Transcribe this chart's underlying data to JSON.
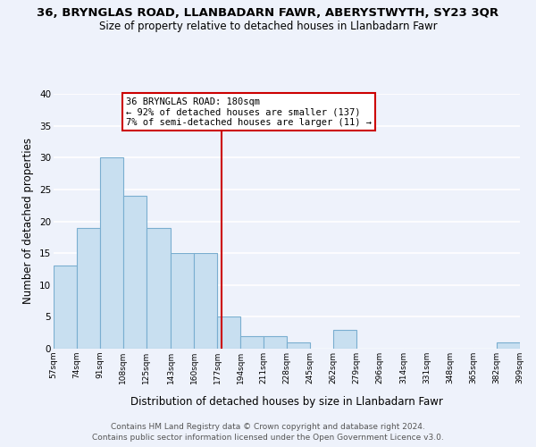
{
  "title": "36, BRYNGLAS ROAD, LLANBADARN FAWR, ABERYSTWYTH, SY23 3QR",
  "subtitle": "Size of property relative to detached houses in Llanbadarn Fawr",
  "xlabel": "Distribution of detached houses by size in Llanbadarn Fawr",
  "ylabel": "Number of detached properties",
  "bin_edges": [
    57,
    74,
    91,
    108,
    125,
    143,
    160,
    177,
    194,
    211,
    228,
    245,
    262,
    279,
    296,
    314,
    331,
    348,
    365,
    382,
    399
  ],
  "bin_heights": [
    13,
    19,
    30,
    24,
    19,
    15,
    15,
    5,
    2,
    2,
    1,
    0,
    3,
    0,
    0,
    0,
    0,
    0,
    0,
    1
  ],
  "bar_facecolor": "#c8dff0",
  "bar_edgecolor": "#7aaed0",
  "vline_x": 180,
  "vline_color": "#cc0000",
  "annotation_lines": [
    "36 BRYNGLAS ROAD: 180sqm",
    "← 92% of detached houses are smaller (137)",
    "7% of semi-detached houses are larger (11) →"
  ],
  "xlim": [
    57,
    399
  ],
  "ylim": [
    0,
    40
  ],
  "yticks": [
    0,
    5,
    10,
    15,
    20,
    25,
    30,
    35,
    40
  ],
  "xtick_labels": [
    "57sqm",
    "74sqm",
    "91sqm",
    "108sqm",
    "125sqm",
    "143sqm",
    "160sqm",
    "177sqm",
    "194sqm",
    "211sqm",
    "228sqm",
    "245sqm",
    "262sqm",
    "279sqm",
    "296sqm",
    "314sqm",
    "331sqm",
    "348sqm",
    "365sqm",
    "382sqm",
    "399sqm"
  ],
  "xtick_positions": [
    57,
    74,
    91,
    108,
    125,
    143,
    160,
    177,
    194,
    211,
    228,
    245,
    262,
    279,
    296,
    314,
    331,
    348,
    365,
    382,
    399
  ],
  "footer_line1": "Contains HM Land Registry data © Crown copyright and database right 2024.",
  "footer_line2": "Contains public sector information licensed under the Open Government Licence v3.0.",
  "bg_color": "#eef2fb",
  "grid_color": "#ffffff",
  "annotation_box_edgecolor": "#cc0000",
  "annotation_box_facecolor": "#ffffff"
}
